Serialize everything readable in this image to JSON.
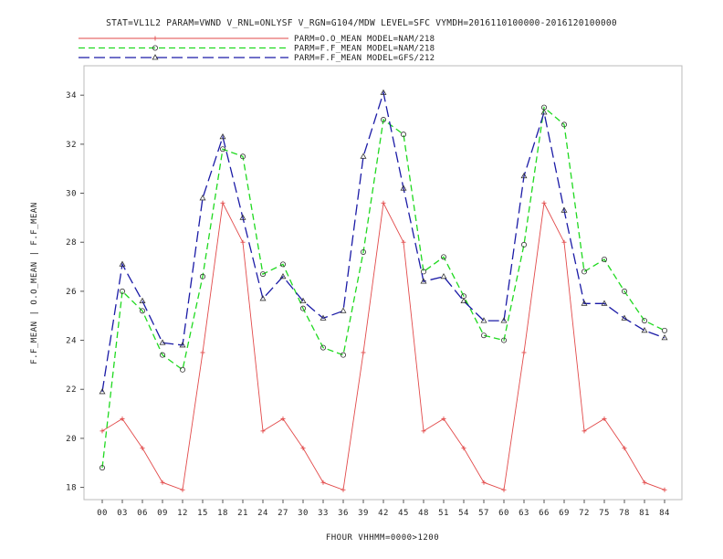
{
  "chart_data": {
    "type": "line",
    "title": "STAT=VL1L2 PARAM=VWND V_RNL=ONLYSF V_RGN=G104/MDW LEVEL=SFC VYMDH=2016110100000-2016120100000",
    "xlabel": "FHOUR VHHMM=0000>1200",
    "ylabel": "F.F_MEAN | O.O_MEAN | F.F_MEAN",
    "categories": [
      "00",
      "03",
      "06",
      "09",
      "12",
      "15",
      "18",
      "21",
      "24",
      "27",
      "30",
      "33",
      "36",
      "39",
      "42",
      "45",
      "48",
      "51",
      "54",
      "57",
      "60",
      "63",
      "66",
      "69",
      "72",
      "75",
      "78",
      "81",
      "84"
    ],
    "ylim": [
      17.5,
      35.2
    ],
    "yticks": [
      18,
      20,
      22,
      24,
      26,
      28,
      30,
      32,
      34
    ],
    "grid": false,
    "legend_position": "top",
    "series": [
      {
        "name": "PARM=O.O_MEAN MODEL=NAM/218",
        "color": "#e24a4a",
        "dash": "",
        "marker": "plus",
        "values": [
          20.3,
          20.8,
          19.6,
          18.2,
          17.9,
          23.5,
          29.6,
          28.0,
          20.3,
          20.8,
          19.6,
          18.2,
          17.9,
          23.5,
          29.6,
          28.0,
          20.3,
          20.8,
          19.6,
          18.2,
          17.9,
          23.5,
          29.6,
          28.0,
          20.3,
          20.8,
          19.6,
          18.2,
          17.9
        ]
      },
      {
        "name": "PARM=F.F_MEAN MODEL=NAM/218",
        "color": "#1fd91f",
        "dash": "7,4",
        "marker": "circle",
        "values": [
          18.8,
          26.0,
          25.2,
          23.4,
          22.8,
          26.6,
          31.8,
          31.5,
          26.7,
          27.1,
          25.3,
          23.7,
          23.4,
          27.6,
          33.0,
          32.4,
          26.8,
          27.4,
          25.8,
          24.2,
          24.0,
          27.9,
          33.5,
          32.8,
          26.8,
          27.3,
          26.0,
          24.8,
          24.4
        ]
      },
      {
        "name": "PARM=F.F_MEAN MODEL=GFS/212",
        "color": "#1a1aa6",
        "dash": "12,5",
        "marker": "triangle",
        "values": [
          21.9,
          27.1,
          25.6,
          23.9,
          23.8,
          29.8,
          32.3,
          29.0,
          25.7,
          26.6,
          25.6,
          24.9,
          25.2,
          31.5,
          34.1,
          30.2,
          26.4,
          26.6,
          25.6,
          24.8,
          24.8,
          30.7,
          33.3,
          29.3,
          25.5,
          25.5,
          24.9,
          24.4,
          24.1
        ]
      }
    ]
  }
}
